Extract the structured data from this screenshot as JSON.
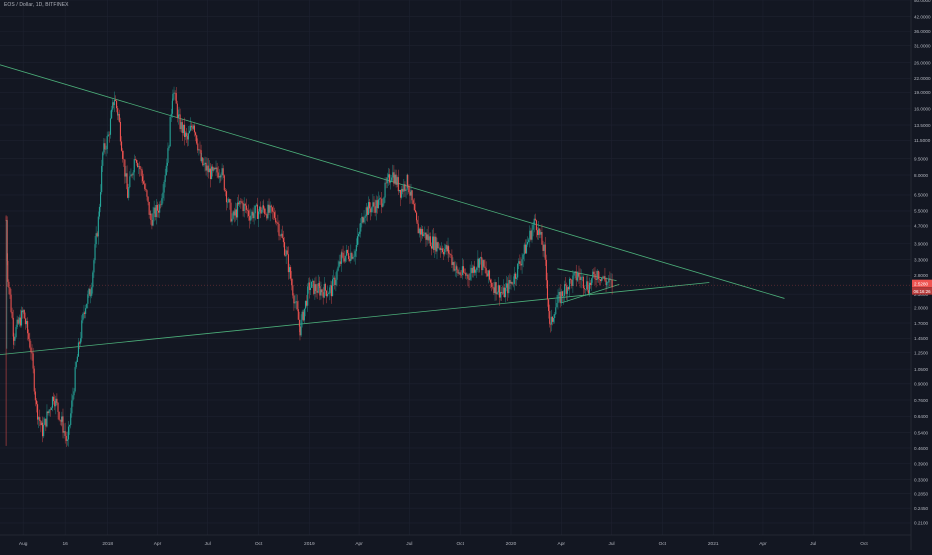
{
  "header": {
    "symbol_line": "EOS / Dollar, 1D, BITFINEX"
  },
  "price_badges": {
    "last_price": "2.5280",
    "countdown": "06:16:26",
    "color": "#ef5350"
  },
  "colors": {
    "background": "#131722",
    "grid": "#1e2230",
    "up": "#26a69a",
    "down": "#ef5350",
    "trendline": "#4caf7a",
    "axis_text": "#b2b5be"
  },
  "chart_data": {
    "type": "candlestick",
    "title": "EOS / Dollar, 1D, BITFINEX",
    "y_scale": "log",
    "grid": true,
    "x_tick_labels": [
      "Aug",
      "16",
      "2018",
      "Apr",
      "Jul",
      "Oct",
      "2019",
      "Apr",
      "Jul",
      "Oct",
      "2020",
      "Apr",
      "Jul",
      "Oct",
      "2021",
      "Apr",
      "Jul",
      "Oct"
    ],
    "x_tick_dates": [
      "2017-08-01",
      "2017-10-16",
      "2018-01-01",
      "2018-04-01",
      "2018-07-01",
      "2018-10-01",
      "2019-01-01",
      "2019-04-01",
      "2019-07-01",
      "2019-10-01",
      "2020-01-01",
      "2020-04-01",
      "2020-07-01",
      "2020-10-01",
      "2021-01-01",
      "2021-04-01",
      "2021-07-01",
      "2021-10-01"
    ],
    "y_tick_labels": [
      "50.0000",
      "42.0000",
      "36.0000",
      "31.0000",
      "26.0000",
      "22.0000",
      "19.0000",
      "16.0000",
      "13.5000",
      "11.5000",
      "9.5000",
      "8.0000",
      "6.5000",
      "5.5000",
      "4.7000",
      "3.9000",
      "3.3000",
      "2.8000",
      "2.3000",
      "2.0000",
      "1.7000",
      "1.4500",
      "1.2500",
      "1.0500",
      "0.9000",
      "0.7600",
      "0.6400",
      "0.5400",
      "0.4600",
      "0.3900",
      "0.3300",
      "0.2850",
      "0.2450",
      "0.2100"
    ],
    "x_range": [
      "2017-06-20",
      "2021-12-25"
    ],
    "y_range": [
      0.185,
      50
    ],
    "last_price": 2.528,
    "price_series": [
      {
        "date": "2017-07-01",
        "price": 0.5
      },
      {
        "date": "2017-07-01",
        "price": 5.0
      },
      {
        "date": "2017-07-04",
        "price": 2.8
      },
      {
        "date": "2017-07-15",
        "price": 1.5
      },
      {
        "date": "2017-08-01",
        "price": 1.9
      },
      {
        "date": "2017-08-15",
        "price": 1.3
      },
      {
        "date": "2017-08-25",
        "price": 0.7
      },
      {
        "date": "2017-09-05",
        "price": 0.55
      },
      {
        "date": "2017-09-25",
        "price": 0.8
      },
      {
        "date": "2017-10-10",
        "price": 0.6
      },
      {
        "date": "2017-10-20",
        "price": 0.48
      },
      {
        "date": "2017-11-05",
        "price": 1.1
      },
      {
        "date": "2017-11-20",
        "price": 2.0
      },
      {
        "date": "2017-12-01",
        "price": 2.4
      },
      {
        "date": "2017-12-15",
        "price": 5.0
      },
      {
        "date": "2017-12-23",
        "price": 10.0
      },
      {
        "date": "2018-01-02",
        "price": 12.0
      },
      {
        "date": "2018-01-13",
        "price": 18.0
      },
      {
        "date": "2018-01-20",
        "price": 15.0
      },
      {
        "date": "2018-02-06",
        "price": 6.5
      },
      {
        "date": "2018-02-20",
        "price": 10.0
      },
      {
        "date": "2018-03-05",
        "price": 7.8
      },
      {
        "date": "2018-03-20",
        "price": 5.0
      },
      {
        "date": "2018-04-05",
        "price": 5.8
      },
      {
        "date": "2018-04-20",
        "price": 10.0
      },
      {
        "date": "2018-04-29",
        "price": 20.0
      },
      {
        "date": "2018-05-10",
        "price": 14.0
      },
      {
        "date": "2018-05-25",
        "price": 11.5
      },
      {
        "date": "2018-06-05",
        "price": 14.0
      },
      {
        "date": "2018-06-20",
        "price": 9.0
      },
      {
        "date": "2018-07-10",
        "price": 8.0
      },
      {
        "date": "2018-07-25",
        "price": 8.5
      },
      {
        "date": "2018-08-14",
        "price": 5.0
      },
      {
        "date": "2018-08-30",
        "price": 6.0
      },
      {
        "date": "2018-09-15",
        "price": 5.3
      },
      {
        "date": "2018-10-10",
        "price": 5.6
      },
      {
        "date": "2018-11-01",
        "price": 5.2
      },
      {
        "date": "2018-11-20",
        "price": 3.5
      },
      {
        "date": "2018-12-15",
        "price": 1.6
      },
      {
        "date": "2019-01-01",
        "price": 2.5
      },
      {
        "date": "2019-01-20",
        "price": 2.4
      },
      {
        "date": "2019-02-10",
        "price": 2.4
      },
      {
        "date": "2019-03-01",
        "price": 3.4
      },
      {
        "date": "2019-03-25",
        "price": 3.6
      },
      {
        "date": "2019-04-10",
        "price": 5.5
      },
      {
        "date": "2019-05-10",
        "price": 6.0
      },
      {
        "date": "2019-05-30",
        "price": 8.3
      },
      {
        "date": "2019-06-15",
        "price": 6.8
      },
      {
        "date": "2019-06-28",
        "price": 7.5
      },
      {
        "date": "2019-07-15",
        "price": 4.6
      },
      {
        "date": "2019-08-10",
        "price": 4.0
      },
      {
        "date": "2019-09-10",
        "price": 3.6
      },
      {
        "date": "2019-09-25",
        "price": 2.9
      },
      {
        "date": "2019-10-15",
        "price": 2.8
      },
      {
        "date": "2019-11-05",
        "price": 3.3
      },
      {
        "date": "2019-11-25",
        "price": 2.6
      },
      {
        "date": "2019-12-18",
        "price": 2.3
      },
      {
        "date": "2020-01-05",
        "price": 2.7
      },
      {
        "date": "2020-01-25",
        "price": 3.6
      },
      {
        "date": "2020-02-14",
        "price": 5.0
      },
      {
        "date": "2020-03-01",
        "price": 3.6
      },
      {
        "date": "2020-03-12",
        "price": 1.6
      },
      {
        "date": "2020-03-20",
        "price": 2.0
      },
      {
        "date": "2020-04-10",
        "price": 2.5
      },
      {
        "date": "2020-05-01",
        "price": 2.8
      },
      {
        "date": "2020-05-20",
        "price": 2.5
      },
      {
        "date": "2020-06-05",
        "price": 2.9
      },
      {
        "date": "2020-06-22",
        "price": 2.6
      },
      {
        "date": "2020-07-04",
        "price": 2.53
      }
    ],
    "trendlines": [
      {
        "name": "upper",
        "points": [
          {
            "date": "2017-05-15",
            "price": 27.0
          },
          {
            "date": "2021-05-10",
            "price": 2.2
          }
        ]
      },
      {
        "name": "lower",
        "points": [
          {
            "date": "2017-05-20",
            "price": 1.2
          },
          {
            "date": "2020-12-25",
            "price": 2.6
          }
        ]
      },
      {
        "name": "inner-upper",
        "points": [
          {
            "date": "2020-03-25",
            "price": 3.0
          },
          {
            "date": "2020-07-10",
            "price": 2.65
          }
        ]
      },
      {
        "name": "inner-lower",
        "points": [
          {
            "date": "2020-04-01",
            "price": 2.1
          },
          {
            "date": "2020-07-15",
            "price": 2.55
          }
        ]
      }
    ]
  }
}
